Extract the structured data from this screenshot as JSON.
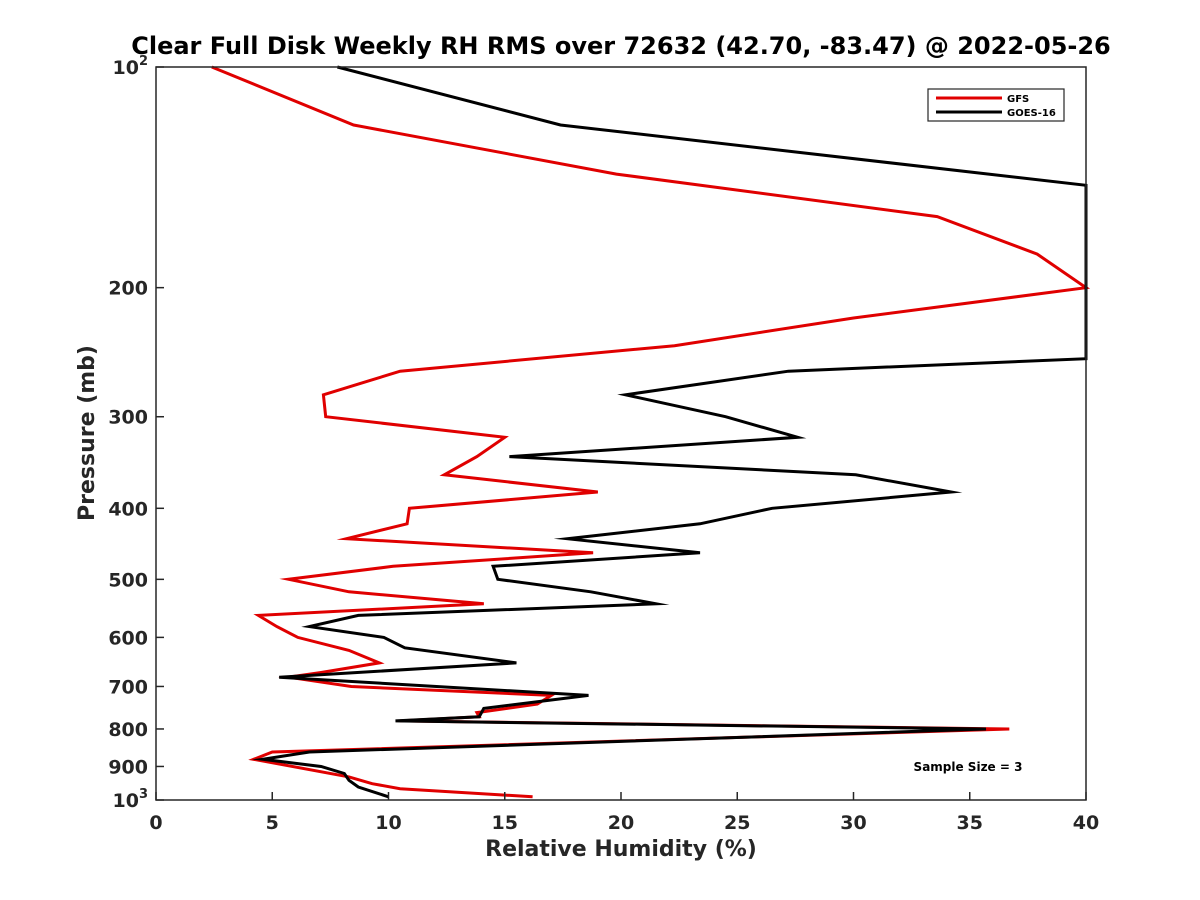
{
  "chart_data": {
    "type": "line",
    "title": "Clear Full Disk Weekly RH RMS over 72632 (42.70, -83.47) @ 2022-05-26",
    "xlabel": "Relative Humidity (%)",
    "ylabel": "Pressure (mb)",
    "xlim": [
      0,
      40
    ],
    "ylim": [
      100,
      1000
    ],
    "y_scale": "log",
    "y_reversed": true,
    "x_ticks": [
      0,
      5,
      10,
      15,
      20,
      25,
      30,
      35,
      40
    ],
    "y_ticks": [
      {
        "value": 100,
        "base": "10",
        "exp": "2"
      },
      {
        "value": 200,
        "label": "200"
      },
      {
        "value": 300,
        "label": "300"
      },
      {
        "value": 400,
        "label": "400"
      },
      {
        "value": 500,
        "label": "500"
      },
      {
        "value": 600,
        "label": "600"
      },
      {
        "value": 700,
        "label": "700"
      },
      {
        "value": 800,
        "label": "800"
      },
      {
        "value": 900,
        "label": "900"
      },
      {
        "value": 1000,
        "base": "10",
        "exp": "3"
      }
    ],
    "grid": false,
    "legend_position": "top-right",
    "series": [
      {
        "name": "GFS",
        "color": "#e00000",
        "points": [
          [
            2.4,
            100
          ],
          [
            8.5,
            120
          ],
          [
            19.8,
            140
          ],
          [
            33.6,
            160
          ],
          [
            37.9,
            180
          ],
          [
            40.0,
            200
          ],
          [
            30.0,
            220
          ],
          [
            22.3,
            240
          ],
          [
            10.5,
            260
          ],
          [
            7.2,
            280
          ],
          [
            7.3,
            300
          ],
          [
            15.0,
            320
          ],
          [
            13.8,
            340
          ],
          [
            12.4,
            360
          ],
          [
            19.0,
            380
          ],
          [
            10.9,
            400
          ],
          [
            10.8,
            420
          ],
          [
            8.2,
            440
          ],
          [
            18.8,
            460
          ],
          [
            10.2,
            480
          ],
          [
            5.7,
            500
          ],
          [
            8.3,
            520
          ],
          [
            14.1,
            540
          ],
          [
            4.4,
            560
          ],
          [
            5.2,
            580
          ],
          [
            6.1,
            600
          ],
          [
            8.3,
            625
          ],
          [
            9.6,
            650
          ],
          [
            7.1,
            670
          ],
          [
            5.7,
            680
          ],
          [
            8.4,
            700
          ],
          [
            17.0,
            720
          ],
          [
            16.4,
            740
          ],
          [
            13.8,
            760
          ],
          [
            13.9,
            770
          ],
          [
            10.5,
            780
          ],
          [
            36.7,
            800
          ],
          [
            5.0,
            860
          ],
          [
            4.2,
            880
          ],
          [
            8.3,
            930
          ],
          [
            9.3,
            950
          ],
          [
            10.5,
            965
          ],
          [
            16.2,
            990
          ]
        ]
      },
      {
        "name": "GOES-16",
        "color": "#000000",
        "points": [
          [
            7.8,
            100
          ],
          [
            17.4,
            120
          ],
          [
            40.0,
            145
          ],
          [
            40.0,
            250
          ],
          [
            27.2,
            260
          ],
          [
            20.2,
            280
          ],
          [
            24.5,
            300
          ],
          [
            27.6,
            320
          ],
          [
            15.2,
            340
          ],
          [
            30.1,
            360
          ],
          [
            34.2,
            380
          ],
          [
            26.5,
            400
          ],
          [
            23.4,
            420
          ],
          [
            17.7,
            440
          ],
          [
            23.4,
            460
          ],
          [
            14.5,
            480
          ],
          [
            14.7,
            500
          ],
          [
            18.7,
            520
          ],
          [
            21.5,
            540
          ],
          [
            8.7,
            560
          ],
          [
            6.6,
            580
          ],
          [
            9.8,
            600
          ],
          [
            10.7,
            620
          ],
          [
            15.5,
            650
          ],
          [
            5.3,
            680
          ],
          [
            18.6,
            720
          ],
          [
            14.1,
            750
          ],
          [
            13.9,
            770
          ],
          [
            10.3,
            780
          ],
          [
            35.7,
            800
          ],
          [
            6.6,
            860
          ],
          [
            4.6,
            880
          ],
          [
            7.1,
            900
          ],
          [
            8.1,
            920
          ],
          [
            8.3,
            940
          ],
          [
            8.7,
            960
          ],
          [
            10.0,
            990
          ]
        ]
      }
    ],
    "annotation": "Sample Size = 3"
  }
}
